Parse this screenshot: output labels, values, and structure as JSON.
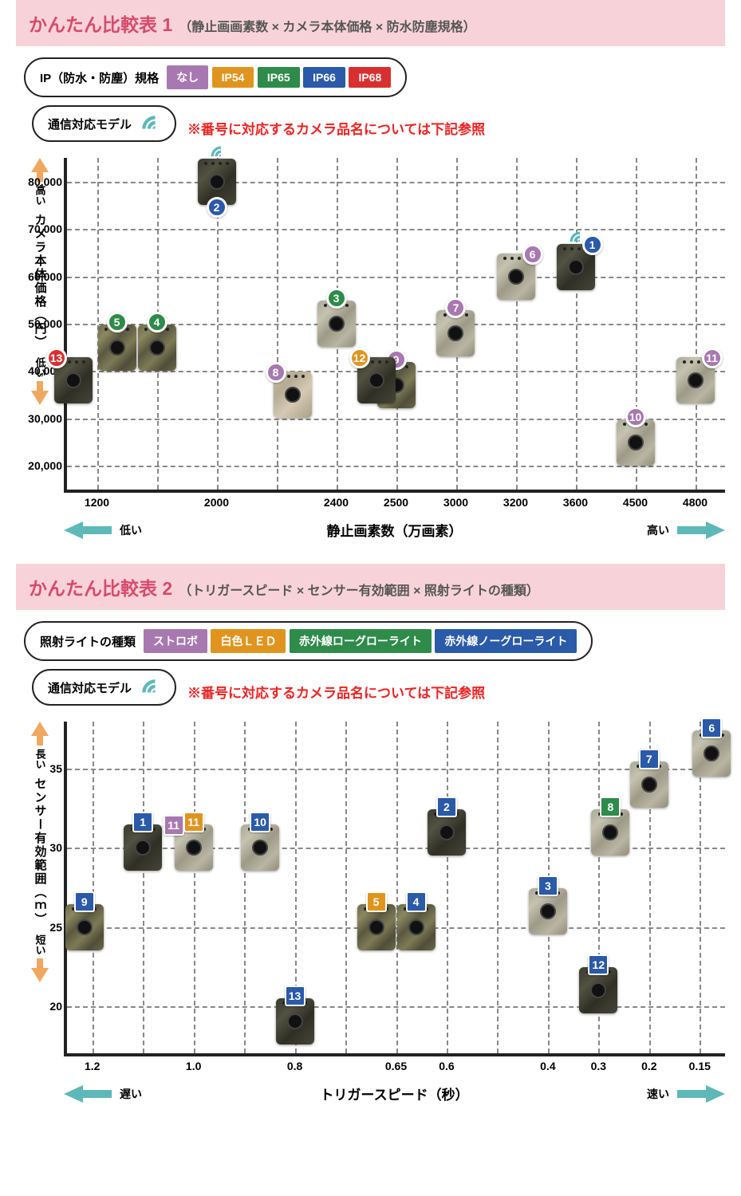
{
  "colors": {
    "pink_bg": "#f7d3d9",
    "title": "#d84a6b",
    "red": "#e22",
    "teal": "#5fb8b8",
    "orange_arrow": "#f0a860"
  },
  "ip_colors": {
    "none": "#a878b0",
    "ip54": "#e0941e",
    "ip65": "#2e8b4a",
    "ip66": "#2a5aa8",
    "ip68": "#d83030"
  },
  "light_colors": {
    "strobe": "#a878b0",
    "white": "#e0941e",
    "low": "#2e8b4a",
    "no": "#2a5aa8"
  },
  "chart1": {
    "title_main": "かんたん比較表 1",
    "title_sub": "（静止画画素数 × カメラ本体価格 × 防水防塵規格）",
    "legend_label": "IP（防水・防塵）規格",
    "legend_items": [
      {
        "label": "なし",
        "color": "#a878b0"
      },
      {
        "label": "IP54",
        "color": "#e0941e"
      },
      {
        "label": "IP65",
        "color": "#2e8b4a"
      },
      {
        "label": "IP66",
        "color": "#2a5aa8"
      },
      {
        "label": "IP68",
        "color": "#d83030"
      }
    ],
    "comm_label": "通信対応モデル",
    "note": "※番号に対応するカメラ品名については下記参照",
    "y_label": "カメラ本体価格（円）",
    "y_hi": "高い",
    "y_lo": "低い",
    "x_label": "静止画素数（万画素）",
    "x_lo": "低い",
    "x_hi": "高い",
    "y_min": 15000,
    "y_max": 85000,
    "y_ticks": [
      20000,
      30000,
      40000,
      50000,
      60000,
      70000,
      80000
    ],
    "x_ticks": [
      "1200",
      "1500",
      "2000",
      "2200",
      "2400",
      "2500",
      "3000",
      "3200",
      "3600",
      "4500",
      "4800"
    ],
    "x_tick_show": [
      1,
      0,
      1,
      0,
      1,
      1,
      1,
      1,
      1,
      1,
      1
    ],
    "points": [
      {
        "id": "1",
        "x": "3600",
        "y": 62000,
        "color": "#2a5aa8",
        "camo": "camo3",
        "badge_shape": "round",
        "badge_pos": "tr",
        "wifi": true
      },
      {
        "id": "2",
        "x": "2000",
        "y": 80000,
        "color": "#2a5aa8",
        "camo": "camo3",
        "badge_shape": "round",
        "badge_pos": "bottom",
        "wifi": true
      },
      {
        "id": "3",
        "x": "2400",
        "y": 50000,
        "color": "#2e8b4a",
        "camo": "camo2",
        "badge_shape": "round",
        "badge_pos": "top"
      },
      {
        "id": "4",
        "x": "1500",
        "y": 45000,
        "color": "#2e8b4a",
        "camo": "camo1",
        "badge_shape": "round",
        "badge_pos": "top"
      },
      {
        "id": "5",
        "x": "1200",
        "y": 45000,
        "color": "#2e8b4a",
        "camo": "camo1",
        "badge_shape": "round",
        "badge_pos": "top",
        "xoffset": 25
      },
      {
        "id": "6",
        "x": "3200",
        "y": 60000,
        "color": "#a878b0",
        "camo": "camo2",
        "badge_shape": "round",
        "badge_pos": "tr"
      },
      {
        "id": "7",
        "x": "3000",
        "y": 48000,
        "color": "#a878b0",
        "camo": "camo2",
        "badge_shape": "round",
        "badge_pos": "top"
      },
      {
        "id": "8",
        "x": "2200",
        "y": 35000,
        "color": "#a878b0",
        "camo": "camo4",
        "badge_shape": "round",
        "badge_pos": "tl",
        "xoffset": 20
      },
      {
        "id": "9",
        "x": "2500",
        "y": 37000,
        "color": "#a878b0",
        "camo": "camo1",
        "badge_shape": "round",
        "badge_pos": "top"
      },
      {
        "id": "10",
        "x": "4500",
        "y": 25000,
        "color": "#a878b0",
        "camo": "camo2",
        "badge_shape": "round",
        "badge_pos": "top"
      },
      {
        "id": "11",
        "x": "4800",
        "y": 38000,
        "color": "#a878b0",
        "camo": "camo2",
        "badge_shape": "round",
        "badge_pos": "tr"
      },
      {
        "id": "12",
        "x": "2500",
        "y": 38000,
        "color": "#e0941e",
        "camo": "camo3",
        "badge_shape": "round",
        "badge_pos": "tl",
        "xoffset": -25
      },
      {
        "id": "13",
        "x": "1200",
        "y": 38000,
        "color": "#d83030",
        "camo": "camo3",
        "badge_shape": "round",
        "badge_pos": "tl",
        "xoffset": -30
      }
    ]
  },
  "chart2": {
    "title_main": "かんたん比較表 2",
    "title_sub": "（トリガースピード × センサー有効範囲 × 照射ライトの種類）",
    "legend_label": "照射ライトの種類",
    "legend_items": [
      {
        "label": "ストロボ",
        "color": "#a878b0"
      },
      {
        "label": "白色ＬＥＤ",
        "color": "#e0941e"
      },
      {
        "label": "赤外線ローグローライト",
        "color": "#2e8b4a"
      },
      {
        "label": "赤外線ノーグローライト",
        "color": "#2a5aa8"
      }
    ],
    "comm_label": "通信対応モデル",
    "note": "※番号に対応するカメラ品名については下記参照",
    "y_label": "センサー有効範囲（ｍ）",
    "y_hi": "長い",
    "y_lo": "短い",
    "x_label": "トリガースピード（秒）",
    "x_lo": "遅い",
    "x_hi": "速い",
    "y_min": 17,
    "y_max": 38,
    "y_ticks": [
      20,
      25,
      30,
      35
    ],
    "x_ticks": [
      "1.2",
      "1.1",
      "1.0",
      "0.9",
      "0.8",
      "0.7",
      "0.65",
      "0.6",
      "0.5",
      "0.4",
      "0.3",
      "0.2",
      "0.15"
    ],
    "x_tick_show": [
      1,
      0,
      1,
      0,
      1,
      0,
      1,
      1,
      0,
      1,
      1,
      1,
      1
    ],
    "points": [
      {
        "id": "1",
        "x": "1.1",
        "y": 30,
        "color": "#2a5aa8",
        "camo": "camo3",
        "badge_shape": "sq",
        "badge_pos": "top",
        "wifi": true
      },
      {
        "id": "2",
        "x": "0.6",
        "y": 31,
        "color": "#2a5aa8",
        "camo": "camo3",
        "badge_shape": "sq",
        "badge_pos": "top",
        "wifi": true
      },
      {
        "id": "3",
        "x": "0.4",
        "y": 26,
        "color": "#2a5aa8",
        "camo": "camo2",
        "badge_shape": "sq",
        "badge_pos": "top"
      },
      {
        "id": "4",
        "x": "0.65",
        "y": 25,
        "color": "#2a5aa8",
        "camo": "camo1",
        "badge_shape": "sq",
        "badge_pos": "top",
        "xoffset": 25
      },
      {
        "id": "5",
        "x": "0.65",
        "y": 25,
        "color": "#e0941e",
        "camo": "camo1",
        "badge_shape": "sq",
        "badge_pos": "top",
        "xoffset": -25
      },
      {
        "id": "6",
        "x": "0.15",
        "y": 36,
        "color": "#2a5aa8",
        "camo": "camo2",
        "badge_shape": "sq",
        "badge_pos": "top",
        "xoffset": 15
      },
      {
        "id": "7",
        "x": "0.2",
        "y": 34,
        "color": "#2a5aa8",
        "camo": "camo2",
        "badge_shape": "sq",
        "badge_pos": "top"
      },
      {
        "id": "8",
        "x": "0.3",
        "y": 31,
        "color": "#2e8b4a",
        "camo": "camo2",
        "badge_shape": "sq",
        "badge_pos": "top",
        "xoffset": 15
      },
      {
        "id": "9",
        "x": "1.2",
        "y": 25,
        "color": "#2a5aa8",
        "camo": "camo1",
        "badge_shape": "sq",
        "badge_pos": "top",
        "xoffset": -10
      },
      {
        "id": "10",
        "x": "0.9",
        "y": 30,
        "color": "#2a5aa8",
        "camo": "camo2",
        "badge_shape": "sq",
        "badge_pos": "top",
        "xoffset": 20
      },
      {
        "id": "11",
        "x": "1.0",
        "y": 30,
        "color": "#e0941e",
        "camo": "camo2",
        "badge_shape": "sq",
        "badge_pos": "top",
        "extra_badge": {
          "color": "#a878b0"
        }
      },
      {
        "id": "12",
        "x": "0.3",
        "y": 21,
        "color": "#2a5aa8",
        "camo": "camo3",
        "badge_shape": "sq",
        "badge_pos": "top"
      },
      {
        "id": "13",
        "x": "0.8",
        "y": 19,
        "color": "#2a5aa8",
        "camo": "camo3",
        "badge_shape": "sq",
        "badge_pos": "top"
      }
    ]
  }
}
